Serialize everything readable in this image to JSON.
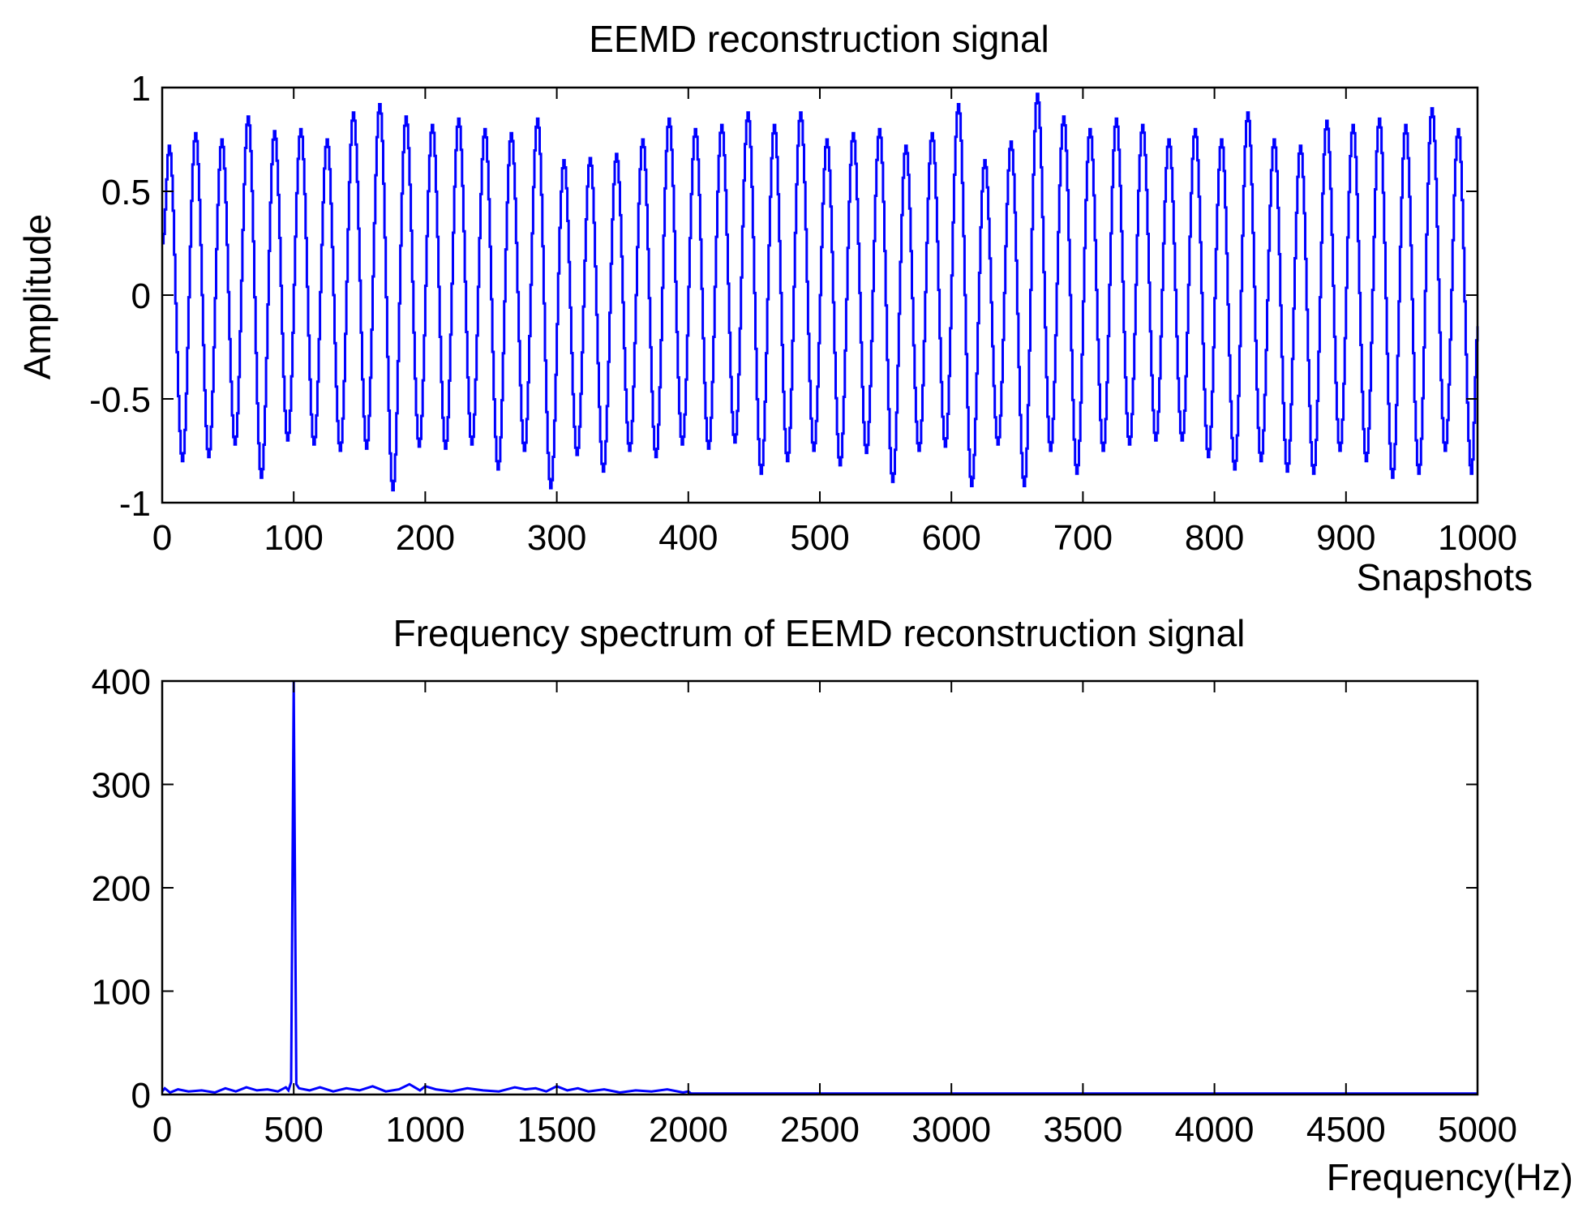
{
  "chart_data": [
    {
      "type": "line",
      "title": "EEMD reconstruction signal",
      "xlabel": "Snapshots",
      "ylabel": "Amplitude",
      "xlim": [
        0,
        1000
      ],
      "ylim": [
        -1,
        1
      ],
      "xticks": [
        "0",
        "100",
        "200",
        "300",
        "400",
        "500",
        "600",
        "700",
        "800",
        "900",
        "1000"
      ],
      "yticks": [
        "-1",
        "-0.5",
        "0",
        "0.5",
        "1"
      ],
      "grid": false,
      "line_color": "#0000ff",
      "series": [
        {
          "period_snapshots": 20,
          "x": [
            0,
            5,
            15,
            25,
            35,
            45,
            55,
            65,
            75,
            85,
            95,
            105,
            115,
            125,
            135,
            145,
            155,
            165,
            175,
            185,
            195,
            205,
            215,
            225,
            235,
            245,
            255,
            265,
            275,
            285,
            295,
            305,
            315,
            325,
            335,
            345,
            355,
            365,
            375,
            385,
            395,
            405,
            415,
            425,
            435,
            445,
            455,
            465,
            475,
            485,
            495,
            505,
            515,
            525,
            535,
            545,
            555,
            565,
            575,
            585,
            595,
            605,
            615,
            625,
            635,
            645,
            655,
            665,
            675,
            685,
            695,
            705,
            715,
            725,
            735,
            745,
            755,
            765,
            775,
            785,
            795,
            805,
            815,
            825,
            835,
            845,
            855,
            865,
            875,
            885,
            895,
            905,
            915,
            925,
            935,
            945,
            955,
            965,
            975,
            985,
            995,
            1000
          ],
          "y": [
            0.25,
            0.72,
            -0.8,
            0.78,
            -0.78,
            0.75,
            -0.72,
            0.86,
            -0.88,
            0.79,
            -0.7,
            0.8,
            -0.72,
            0.75,
            -0.75,
            0.88,
            -0.74,
            0.92,
            -0.94,
            0.86,
            -0.73,
            0.82,
            -0.74,
            0.85,
            -0.72,
            0.8,
            -0.84,
            0.78,
            -0.75,
            0.85,
            -0.93,
            0.65,
            -0.77,
            0.66,
            -0.85,
            0.68,
            -0.75,
            0.75,
            -0.78,
            0.85,
            -0.72,
            0.8,
            -0.74,
            0.82,
            -0.71,
            0.88,
            -0.86,
            0.82,
            -0.8,
            0.88,
            -0.75,
            0.75,
            -0.82,
            0.78,
            -0.76,
            0.8,
            -0.9,
            0.72,
            -0.75,
            0.78,
            -0.73,
            0.92,
            -0.92,
            0.65,
            -0.72,
            0.74,
            -0.92,
            0.97,
            -0.75,
            0.86,
            -0.86,
            0.8,
            -0.75,
            0.85,
            -0.72,
            0.82,
            -0.7,
            0.75,
            -0.7,
            0.8,
            -0.78,
            0.75,
            -0.84,
            0.88,
            -0.8,
            0.75,
            -0.85,
            0.72,
            -0.86,
            0.84,
            -0.75,
            0.82,
            -0.8,
            0.85,
            -0.88,
            0.82,
            -0.86,
            0.9,
            -0.75,
            0.8,
            -0.86,
            -0.15
          ]
        }
      ]
    },
    {
      "type": "line",
      "title": "Frequency spectrum of EEMD reconstruction signal",
      "xlabel": "Frequency(Hz)",
      "ylabel": "",
      "xlim": [
        0,
        5000
      ],
      "ylim": [
        0,
        400
      ],
      "xticks": [
        "0",
        "500",
        "1000",
        "1500",
        "2000",
        "2500",
        "3000",
        "3500",
        "4000",
        "4500",
        "5000"
      ],
      "yticks": [
        "0",
        "100",
        "200",
        "300",
        "400"
      ],
      "grid": false,
      "line_color": "#0000ff",
      "series": [
        {
          "x": [
            0,
            10,
            30,
            60,
            100,
            150,
            200,
            240,
            280,
            320,
            360,
            400,
            440,
            470,
            480,
            490,
            495,
            500,
            505,
            510,
            520,
            560,
            600,
            650,
            700,
            750,
            800,
            850,
            900,
            940,
            980,
            1000,
            1040,
            1100,
            1160,
            1220,
            1280,
            1340,
            1380,
            1420,
            1460,
            1500,
            1540,
            1580,
            1620,
            1680,
            1740,
            1800,
            1860,
            1920,
            1980,
            2000,
            2010,
            2100,
            2500,
            3000,
            3500,
            4000,
            4500,
            5000
          ],
          "y": [
            3,
            6,
            2,
            5,
            3,
            4,
            2,
            6,
            3,
            7,
            4,
            5,
            3,
            7,
            4,
            12,
            200,
            400,
            200,
            10,
            6,
            4,
            7,
            3,
            6,
            4,
            8,
            3,
            5,
            10,
            4,
            8,
            5,
            3,
            6,
            4,
            3,
            7,
            5,
            6,
            3,
            8,
            4,
            6,
            3,
            5,
            2,
            4,
            3,
            5,
            2,
            3,
            1,
            1,
            1,
            1,
            1,
            1,
            1,
            1
          ]
        }
      ]
    }
  ]
}
